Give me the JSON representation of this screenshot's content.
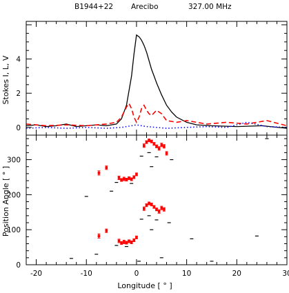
{
  "chart_data": {
    "type": "line",
    "header": {
      "pulsar": "B1944+22",
      "telescope": "Arecibo",
      "frequency": "327.00 MHz"
    },
    "xlabel": "Longitude [ ° ]",
    "xlim": [
      -22,
      30
    ],
    "xticks": [
      "-20",
      "-10",
      "0",
      "10",
      "20",
      "30"
    ],
    "colors": {
      "I": "#000000",
      "L": "#ff0000",
      "V": "#0000ff",
      "pa": "#ff0000",
      "pa_secondary": "#000000"
    },
    "top_panel": {
      "ylabel": "Stokes I, L, V",
      "ylim": [
        -0.45,
        6.2
      ],
      "yticks": [
        "0",
        "2",
        "4"
      ],
      "series": [
        {
          "key": "I",
          "style": "solid",
          "x": [
            -22,
            -20,
            -18,
            -16,
            -14,
            -12,
            -10,
            -8,
            -6,
            -4,
            -3,
            -2,
            -1,
            -0.5,
            0,
            0.5,
            1,
            1.5,
            2,
            2.5,
            3,
            3.5,
            4,
            5,
            6,
            7,
            8,
            10,
            12,
            15,
            20,
            25,
            30
          ],
          "y": [
            0.1,
            0.15,
            0.05,
            0.1,
            0.2,
            0.05,
            0.1,
            0.15,
            0.1,
            0.2,
            0.5,
            1.3,
            3.0,
            4.3,
            5.4,
            5.3,
            5.1,
            4.8,
            4.4,
            3.9,
            3.4,
            3.0,
            2.6,
            1.9,
            1.3,
            0.9,
            0.6,
            0.3,
            0.15,
            0.1,
            0.05,
            0.1,
            -0.05
          ]
        },
        {
          "key": "L",
          "style": "dashed",
          "x": [
            -22,
            -18,
            -14,
            -10,
            -6,
            -4,
            -3,
            -2,
            -1.5,
            -1,
            -0.5,
            0,
            0.5,
            1,
            1.5,
            2,
            2.5,
            3,
            4,
            5,
            6,
            8,
            10,
            14,
            18,
            22,
            26,
            30
          ],
          "y": [
            0.2,
            0.1,
            0.15,
            0.1,
            0.2,
            0.3,
            0.6,
            1.2,
            1.4,
            1.1,
            0.6,
            0.3,
            0.6,
            1.1,
            1.3,
            1.0,
            0.8,
            0.7,
            1.0,
            0.8,
            0.4,
            0.3,
            0.4,
            0.2,
            0.3,
            0.2,
            0.4,
            0.1
          ]
        },
        {
          "key": "V",
          "style": "dotted",
          "x": [
            -22,
            -18,
            -14,
            -10,
            -6,
            -3,
            -1,
            0,
            1,
            2,
            4,
            6,
            10,
            14,
            18,
            22,
            26,
            30
          ],
          "y": [
            -0.05,
            0.0,
            -0.05,
            0.0,
            -0.05,
            0.0,
            0.1,
            0.15,
            0.1,
            0.05,
            0.0,
            -0.05,
            0.0,
            0.05,
            0.0,
            0.3,
            0.05,
            0.0
          ]
        }
      ]
    },
    "bottom_panel": {
      "ylabel": "Position Angle [ ° ]",
      "ylim": [
        0,
        370
      ],
      "yticks": [
        "0",
        "100",
        "200",
        "300"
      ],
      "points": [
        {
          "x": -7.5,
          "y": 82,
          "err": 6
        },
        {
          "x": -6,
          "y": 97,
          "err": 5
        },
        {
          "x": -3.5,
          "y": 68,
          "err": 5
        },
        {
          "x": -3,
          "y": 62,
          "err": 4
        },
        {
          "x": -2.5,
          "y": 65,
          "err": 5
        },
        {
          "x": -2,
          "y": 63,
          "err": 4
        },
        {
          "x": -1.5,
          "y": 67,
          "err": 4
        },
        {
          "x": -1,
          "y": 64,
          "err": 4
        },
        {
          "x": -0.5,
          "y": 70,
          "err": 4
        },
        {
          "x": 0,
          "y": 78,
          "err": 4
        },
        {
          "x": 1.5,
          "y": 160,
          "err": 5
        },
        {
          "x": 2,
          "y": 170,
          "err": 4
        },
        {
          "x": 2.5,
          "y": 175,
          "err": 4
        },
        {
          "x": 3,
          "y": 172,
          "err": 4
        },
        {
          "x": 3.5,
          "y": 165,
          "err": 4
        },
        {
          "x": 4,
          "y": 158,
          "err": 4
        },
        {
          "x": 4.5,
          "y": 152,
          "err": 5
        },
        {
          "x": 5,
          "y": 162,
          "err": 5
        },
        {
          "x": 5.5,
          "y": 158,
          "err": 5
        },
        {
          "x": -7.5,
          "y": 262,
          "err": 6
        },
        {
          "x": -6,
          "y": 277,
          "err": 5
        },
        {
          "x": -3.5,
          "y": 248,
          "err": 5
        },
        {
          "x": -3,
          "y": 242,
          "err": 4
        },
        {
          "x": -2.5,
          "y": 245,
          "err": 5
        },
        {
          "x": -2,
          "y": 243,
          "err": 4
        },
        {
          "x": -1.5,
          "y": 247,
          "err": 4
        },
        {
          "x": -1,
          "y": 244,
          "err": 4
        },
        {
          "x": -0.5,
          "y": 250,
          "err": 4
        },
        {
          "x": 0,
          "y": 258,
          "err": 4
        },
        {
          "x": 1.5,
          "y": 340,
          "err": 5
        },
        {
          "x": 2,
          "y": 350,
          "err": 4
        },
        {
          "x": 2.5,
          "y": 355,
          "err": 4
        },
        {
          "x": 3,
          "y": 352,
          "err": 4
        },
        {
          "x": 3.5,
          "y": 345,
          "err": 4
        },
        {
          "x": 4,
          "y": 338,
          "err": 4
        },
        {
          "x": 4.5,
          "y": 332,
          "err": 5
        },
        {
          "x": 5,
          "y": 342,
          "err": 5
        },
        {
          "x": 5.5,
          "y": 338,
          "err": 5
        },
        {
          "x": 6,
          "y": 318,
          "err": 5
        }
      ],
      "secondary_points": [
        {
          "x": -13,
          "y": 18
        },
        {
          "x": -10,
          "y": 195
        },
        {
          "x": -8,
          "y": 30
        },
        {
          "x": -5,
          "y": 210
        },
        {
          "x": -4,
          "y": 55
        },
        {
          "x": -4,
          "y": 235
        },
        {
          "x": -2,
          "y": 52
        },
        {
          "x": -1,
          "y": 232
        },
        {
          "x": 0.5,
          "y": 10
        },
        {
          "x": 1,
          "y": 130
        },
        {
          "x": 1,
          "y": 310
        },
        {
          "x": 2.5,
          "y": 140
        },
        {
          "x": 2.5,
          "y": 320
        },
        {
          "x": 3,
          "y": 100
        },
        {
          "x": 3,
          "y": 280
        },
        {
          "x": 4,
          "y": 128
        },
        {
          "x": 4,
          "y": 308
        },
        {
          "x": 5,
          "y": 20
        },
        {
          "x": 6.5,
          "y": 120
        },
        {
          "x": 7,
          "y": 300
        },
        {
          "x": 11,
          "y": 74
        },
        {
          "x": 15,
          "y": 10
        },
        {
          "x": 24,
          "y": 82
        },
        {
          "x": 26,
          "y": 360
        }
      ]
    }
  }
}
